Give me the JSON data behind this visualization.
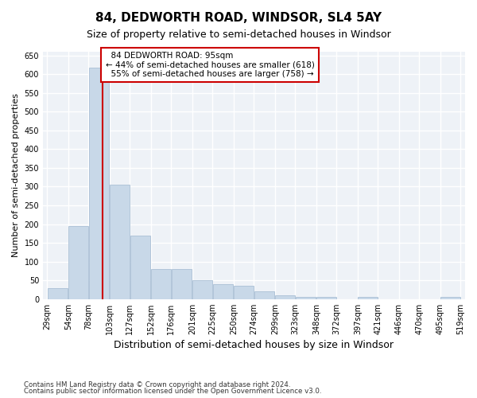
{
  "title": "84, DEDWORTH ROAD, WINDSOR, SL4 5AY",
  "subtitle": "Size of property relative to semi-detached houses in Windsor",
  "xlabel": "Distribution of semi-detached houses by size in Windsor",
  "ylabel": "Number of semi-detached properties",
  "property_size": 95,
  "property_label": "84 DEDWORTH ROAD: 95sqm",
  "smaller_pct": 44,
  "smaller_count": 618,
  "larger_pct": 55,
  "larger_count": 758,
  "footnote1": "Contains HM Land Registry data © Crown copyright and database right 2024.",
  "footnote2": "Contains public sector information licensed under the Open Government Licence v3.0.",
  "bar_color": "#c8d8e8",
  "bar_edge_color": "#a0b8d0",
  "vline_color": "#cc0000",
  "annotation_box_color": "#cc0000",
  "background_color": "#eef2f7",
  "bin_edges": [
    29,
    54,
    78,
    103,
    127,
    152,
    176,
    201,
    225,
    250,
    274,
    299,
    323,
    348,
    372,
    397,
    421,
    446,
    470,
    495,
    519
  ],
  "bin_labels": [
    "29sqm",
    "54sqm",
    "78sqm",
    "103sqm",
    "127sqm",
    "152sqm",
    "176sqm",
    "201sqm",
    "225sqm",
    "250sqm",
    "274sqm",
    "299sqm",
    "323sqm",
    "348sqm",
    "372sqm",
    "397sqm",
    "421sqm",
    "446sqm",
    "470sqm",
    "495sqm",
    "519sqm"
  ],
  "counts": [
    30,
    195,
    618,
    305,
    170,
    80,
    80,
    50,
    40,
    35,
    20,
    10,
    5,
    5,
    0,
    5,
    0,
    0,
    0,
    5
  ],
  "ylim": [
    0,
    660
  ],
  "yticks": [
    0,
    50,
    100,
    150,
    200,
    250,
    300,
    350,
    400,
    450,
    500,
    550,
    600,
    650
  ]
}
